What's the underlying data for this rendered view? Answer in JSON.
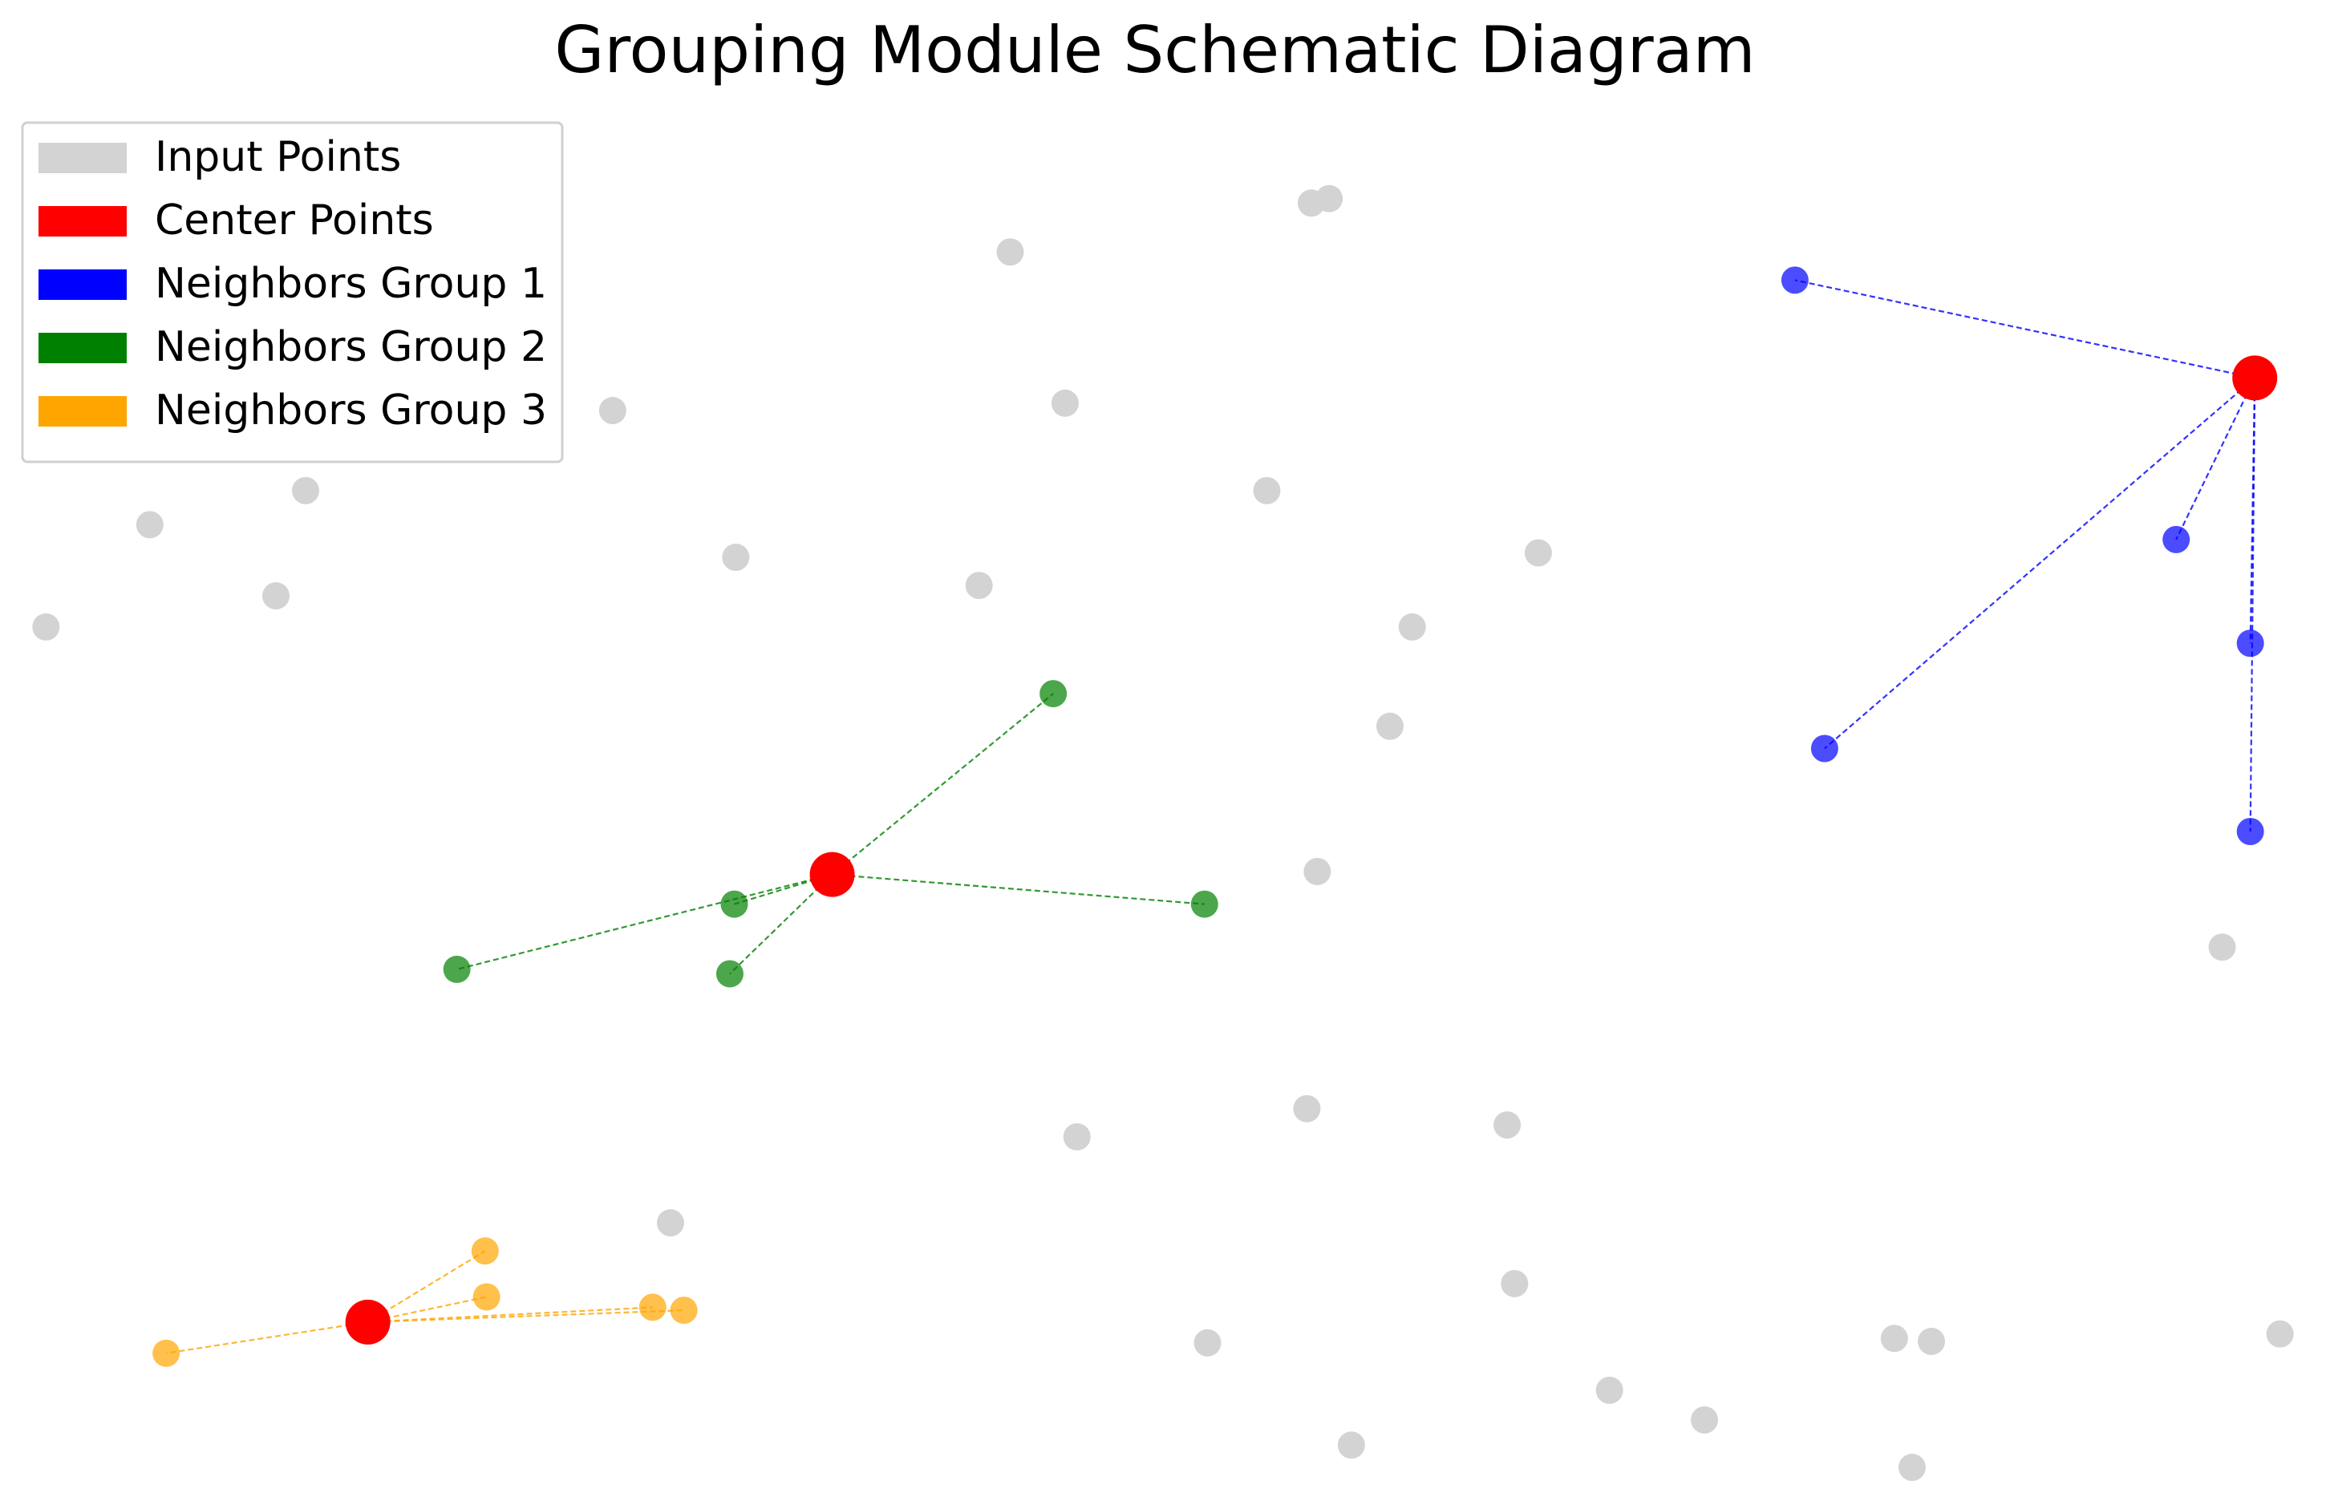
{
  "chart_data": {
    "type": "scatter",
    "title": "Grouping Module Schematic Diagram",
    "xlim": [
      0,
      15.68
    ],
    "ylim": [
      0,
      10.1
    ],
    "legend": "upper left",
    "grid": false,
    "series": [
      {
        "name": "Input Points",
        "color": "#d3d3d3",
        "x": [
          8.84,
          8.96,
          6.81,
          7.18,
          4.13,
          2.06,
          1.01,
          8.54,
          4.96,
          6.6,
          10.37,
          1.86,
          0.31,
          9.52,
          9.37,
          8.88,
          14.98,
          8.81,
          10.16,
          7.26,
          4.52,
          10.21,
          8.14,
          12.77,
          13.02,
          15.37,
          10.85,
          11.49,
          9.11,
          12.89
        ],
        "values": [
          8.73,
          8.76,
          8.4,
          7.38,
          7.33,
          6.79,
          6.56,
          6.79,
          6.34,
          6.15,
          6.37,
          6.08,
          5.87,
          5.87,
          5.2,
          4.22,
          3.71,
          2.62,
          2.51,
          2.43,
          1.85,
          1.44,
          1.04,
          1.07,
          1.05,
          1.1,
          0.72,
          0.52,
          0.35,
          0.2
        ]
      },
      {
        "name": "Center Points",
        "color": "#ff0000",
        "x": [
          15.2,
          5.61,
          2.48
        ],
        "values": [
          7.55,
          4.2,
          1.18
        ]
      },
      {
        "name": "Neighbors Group 1",
        "color": "#0000ff",
        "x": [
          12.1,
          14.67,
          15.17,
          12.3,
          15.17
        ],
        "values": [
          8.21,
          6.46,
          5.76,
          5.05,
          4.49
        ]
      },
      {
        "name": "Neighbors Group 2",
        "color": "#008000",
        "x": [
          7.1,
          4.95,
          3.08,
          4.92,
          8.12
        ],
        "values": [
          5.42,
          4.0,
          3.56,
          3.53,
          4.0
        ]
      },
      {
        "name": "Neighbors Group 3",
        "color": "#ffa500",
        "x": [
          3.27,
          3.28,
          4.4,
          4.61,
          1.12
        ],
        "values": [
          1.66,
          1.35,
          1.28,
          1.26,
          0.97
        ]
      }
    ]
  }
}
